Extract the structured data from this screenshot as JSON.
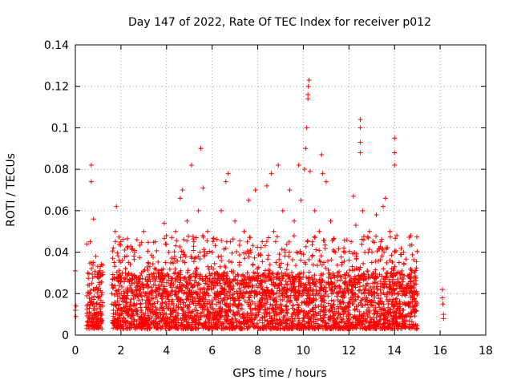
{
  "chart_data": {
    "type": "scatter",
    "title": "Day 147 of 2022, Rate Of TEC Index for receiver p012",
    "xlabel": "GPS time / hours",
    "ylabel": "ROTI / TECUs",
    "xlim": [
      0,
      18
    ],
    "ylim": [
      0,
      0.14
    ],
    "xticks": [
      "0",
      "2",
      "4",
      "6",
      "8",
      "10",
      "12",
      "14",
      "16",
      "18"
    ],
    "yticks": [
      "0",
      "0.02",
      "0.04",
      "0.06",
      "0.08",
      "0.1",
      "0.12",
      "0.14"
    ],
    "grid": true,
    "marker": "+",
    "color": "#ff0000",
    "series": [
      {
        "points": [
          [
            0.0,
            0.031
          ],
          [
            0.0,
            0.012
          ],
          [
            0.02,
            0.009
          ],
          [
            0.03,
            0.014
          ],
          [
            0.5,
            0.044
          ],
          [
            0.55,
            0.03
          ],
          [
            0.6,
            0.02
          ],
          [
            0.62,
            0.008
          ],
          [
            0.65,
            0.045
          ],
          [
            0.7,
            0.082
          ],
          [
            0.7,
            0.074
          ],
          [
            0.72,
            0.025
          ],
          [
            0.75,
            0.015
          ],
          [
            0.78,
            0.035
          ],
          [
            0.8,
            0.056
          ],
          [
            0.82,
            0.012
          ],
          [
            0.85,
            0.022
          ],
          [
            0.9,
            0.038
          ],
          [
            0.95,
            0.01
          ],
          [
            0.98,
            0.028
          ],
          [
            1.0,
            0.018
          ],
          [
            1.1,
            0.033
          ],
          [
            1.2,
            0.014
          ],
          [
            1.6,
            0.02
          ],
          [
            1.7,
            0.035
          ],
          [
            1.75,
            0.05
          ],
          [
            1.8,
            0.062
          ],
          [
            1.85,
            0.012
          ],
          [
            1.9,
            0.028
          ],
          [
            2.0,
            0.045
          ],
          [
            2.1,
            0.018
          ],
          [
            2.2,
            0.032
          ],
          [
            2.3,
            0.01
          ],
          [
            2.5,
            0.025
          ],
          [
            2.6,
            0.04
          ],
          [
            2.7,
            0.015
          ],
          [
            2.9,
            0.03
          ],
          [
            3.0,
            0.05
          ],
          [
            3.1,
            0.02
          ],
          [
            3.2,
            0.035
          ],
          [
            3.4,
            0.012
          ],
          [
            3.5,
            0.045
          ],
          [
            3.6,
            0.022
          ],
          [
            3.8,
            0.03
          ],
          [
            3.9,
            0.054
          ],
          [
            4.0,
            0.015
          ],
          [
            4.1,
            0.04
          ],
          [
            4.2,
            0.025
          ],
          [
            4.4,
            0.05
          ],
          [
            4.5,
            0.018
          ],
          [
            4.6,
            0.066
          ],
          [
            4.7,
            0.07
          ],
          [
            4.8,
            0.035
          ],
          [
            4.9,
            0.055
          ],
          [
            5.0,
            0.02
          ],
          [
            5.1,
            0.082
          ],
          [
            5.2,
            0.045
          ],
          [
            5.3,
            0.03
          ],
          [
            5.4,
            0.06
          ],
          [
            5.5,
            0.09
          ],
          [
            5.6,
            0.071
          ],
          [
            5.7,
            0.025
          ],
          [
            5.8,
            0.05
          ],
          [
            5.9,
            0.015
          ],
          [
            6.0,
            0.04
          ],
          [
            6.2,
            0.03
          ],
          [
            6.4,
            0.06
          ],
          [
            6.5,
            0.022
          ],
          [
            6.6,
            0.074
          ],
          [
            6.7,
            0.078
          ],
          [
            6.8,
            0.045
          ],
          [
            6.9,
            0.018
          ],
          [
            7.0,
            0.055
          ],
          [
            7.2,
            0.035
          ],
          [
            7.4,
            0.05
          ],
          [
            7.5,
            0.025
          ],
          [
            7.6,
            0.065
          ],
          [
            7.7,
            0.04
          ],
          [
            7.8,
            0.01
          ],
          [
            7.9,
            0.07
          ],
          [
            8.0,
            0.03
          ],
          [
            8.2,
            0.045
          ],
          [
            8.4,
            0.072
          ],
          [
            8.5,
            0.02
          ],
          [
            8.6,
            0.078
          ],
          [
            8.7,
            0.05
          ],
          [
            8.8,
            0.035
          ],
          [
            8.9,
            0.082
          ],
          [
            9.0,
            0.015
          ],
          [
            9.1,
            0.06
          ],
          [
            9.2,
            0.04
          ],
          [
            9.4,
            0.07
          ],
          [
            9.5,
            0.025
          ],
          [
            9.6,
            0.055
          ],
          [
            9.7,
            0.04
          ],
          [
            9.8,
            0.082
          ],
          [
            9.9,
            0.065
          ],
          [
            10.0,
            0.03
          ],
          [
            10.05,
            0.08
          ],
          [
            10.1,
            0.09
          ],
          [
            10.15,
            0.1
          ],
          [
            10.2,
            0.114
          ],
          [
            10.2,
            0.116
          ],
          [
            10.22,
            0.12
          ],
          [
            10.25,
            0.123
          ],
          [
            10.3,
            0.079
          ],
          [
            10.4,
            0.045
          ],
          [
            10.5,
            0.06
          ],
          [
            10.6,
            0.02
          ],
          [
            10.7,
            0.05
          ],
          [
            10.8,
            0.087
          ],
          [
            10.85,
            0.078
          ],
          [
            10.9,
            0.035
          ],
          [
            11.0,
            0.074
          ],
          [
            11.1,
            0.025
          ],
          [
            11.2,
            0.055
          ],
          [
            11.4,
            0.04
          ],
          [
            11.6,
            0.015
          ],
          [
            11.7,
            0.035
          ],
          [
            11.8,
            0.025
          ],
          [
            11.9,
            0.03
          ],
          [
            12.0,
            0.012
          ],
          [
            12.1,
            0.045
          ],
          [
            12.2,
            0.067
          ],
          [
            12.3,
            0.053
          ],
          [
            12.4,
            0.032
          ],
          [
            12.5,
            0.104
          ],
          [
            12.5,
            0.1
          ],
          [
            12.5,
            0.093
          ],
          [
            12.5,
            0.088
          ],
          [
            12.6,
            0.06
          ],
          [
            12.7,
            0.04
          ],
          [
            12.8,
            0.025
          ],
          [
            12.9,
            0.05
          ],
          [
            13.0,
            0.035
          ],
          [
            13.2,
            0.058
          ],
          [
            13.4,
            0.045
          ],
          [
            13.5,
            0.062
          ],
          [
            13.6,
            0.066
          ],
          [
            13.7,
            0.03
          ],
          [
            13.8,
            0.05
          ],
          [
            13.9,
            0.02
          ],
          [
            14.0,
            0.095
          ],
          [
            14.0,
            0.088
          ],
          [
            14.0,
            0.082
          ],
          [
            14.1,
            0.048
          ],
          [
            14.2,
            0.035
          ],
          [
            14.4,
            0.04
          ],
          [
            14.6,
            0.025
          ],
          [
            14.8,
            0.018
          ],
          [
            14.9,
            0.012
          ],
          [
            15.0,
            0.02
          ],
          [
            16.1,
            0.022
          ],
          [
            16.1,
            0.018
          ],
          [
            16.12,
            0.015
          ],
          [
            16.15,
            0.01
          ],
          [
            16.15,
            0.008
          ]
        ]
      }
    ],
    "dense_band": [
      {
        "x0": 0.5,
        "x1": 1.2,
        "ymin": 0.003,
        "ymax": 0.035,
        "n": 160
      },
      {
        "x0": 1.6,
        "x1": 15.0,
        "ymin": 0.003,
        "ymax": 0.03,
        "n": 2600
      },
      {
        "x0": 1.6,
        "x1": 15.0,
        "ymin": 0.02,
        "ymax": 0.048,
        "n": 700
      }
    ]
  }
}
